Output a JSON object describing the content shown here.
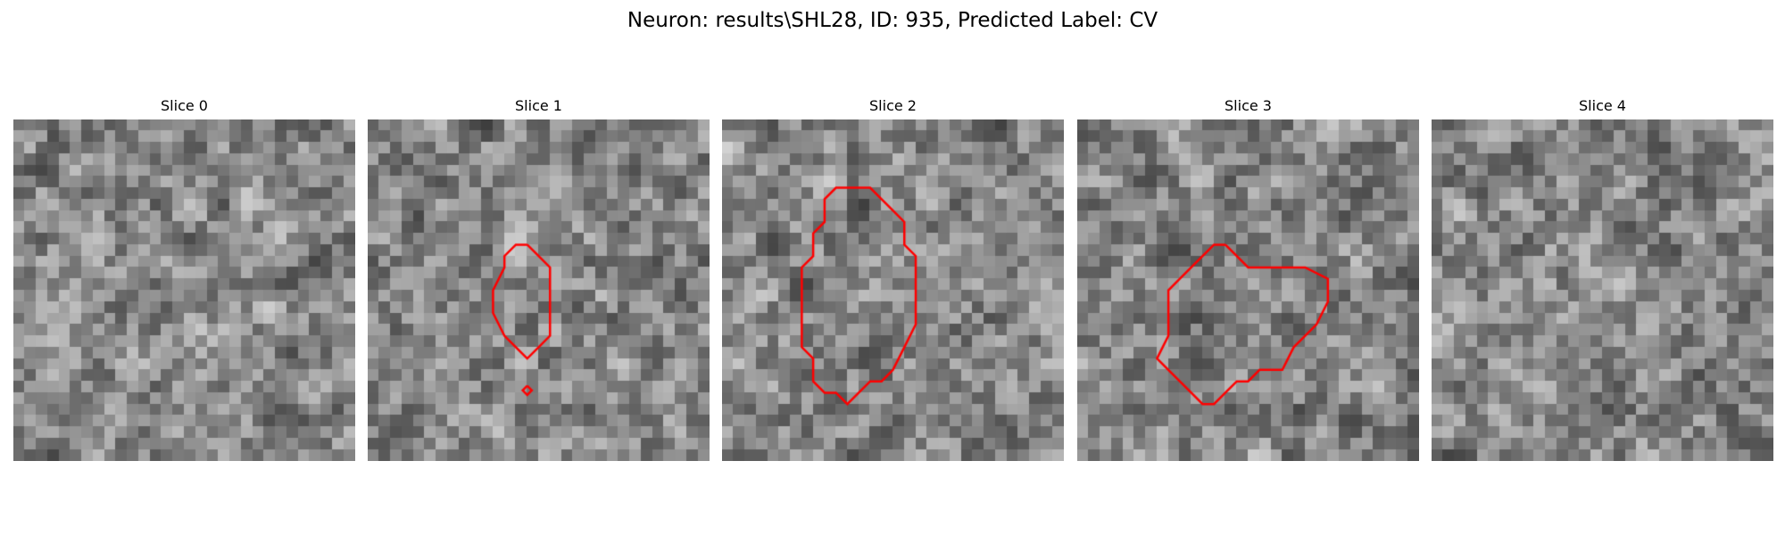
{
  "figure": {
    "title": "Neuron: results\\SHL28, ID: 935, Predicted Label: CV"
  },
  "slices": [
    {
      "label": "Slice 0",
      "seed": 11,
      "contour": []
    },
    {
      "label": "Slice 1",
      "seed": 27,
      "contour": [
        [
          14,
          11
        ],
        [
          15,
          12
        ],
        [
          16,
          13
        ],
        [
          16,
          15
        ],
        [
          16,
          17
        ],
        [
          16,
          19
        ],
        [
          15,
          20
        ],
        [
          14,
          21
        ],
        [
          13,
          20
        ],
        [
          12,
          19
        ],
        [
          11,
          17
        ],
        [
          11,
          15
        ],
        [
          12,
          13
        ],
        [
          12,
          12
        ],
        [
          13,
          11
        ],
        [
          14,
          11
        ]
      ],
      "contour2": [
        [
          14,
          23.4
        ],
        [
          14.4,
          23.8
        ],
        [
          14,
          24.2
        ],
        [
          13.6,
          23.8
        ],
        [
          14,
          23.4
        ]
      ]
    },
    {
      "label": "Slice 2",
      "seed": 43,
      "contour": [
        [
          11,
          6
        ],
        [
          12,
          6
        ],
        [
          13,
          6
        ],
        [
          14,
          7
        ],
        [
          15,
          8
        ],
        [
          16,
          9
        ],
        [
          16,
          11
        ],
        [
          17,
          12
        ],
        [
          17,
          14
        ],
        [
          17,
          16
        ],
        [
          17,
          18
        ],
        [
          16,
          20
        ],
        [
          15,
          22
        ],
        [
          14,
          23
        ],
        [
          13,
          23
        ],
        [
          12,
          24
        ],
        [
          11,
          25
        ],
        [
          10,
          24
        ],
        [
          9,
          24
        ],
        [
          8,
          23
        ],
        [
          8,
          21
        ],
        [
          7,
          20
        ],
        [
          7,
          18
        ],
        [
          7,
          16
        ],
        [
          7,
          14
        ],
        [
          7,
          13
        ],
        [
          8,
          12
        ],
        [
          8,
          10
        ],
        [
          9,
          9
        ],
        [
          9,
          7
        ],
        [
          10,
          6
        ],
        [
          11,
          6
        ]
      ]
    },
    {
      "label": "Slice 3",
      "seed": 59,
      "contour": [
        [
          13,
          11
        ],
        [
          14,
          12
        ],
        [
          15,
          13
        ],
        [
          16,
          13
        ],
        [
          17,
          13
        ],
        [
          18,
          13
        ],
        [
          20,
          13
        ],
        [
          22,
          14
        ],
        [
          22,
          16
        ],
        [
          21,
          18
        ],
        [
          20,
          19
        ],
        [
          19,
          20
        ],
        [
          18,
          22
        ],
        [
          17,
          22
        ],
        [
          16,
          22
        ],
        [
          15,
          23
        ],
        [
          14,
          23
        ],
        [
          13,
          24
        ],
        [
          12,
          25
        ],
        [
          11,
          25
        ],
        [
          10,
          24
        ],
        [
          9,
          23
        ],
        [
          8,
          22
        ],
        [
          7,
          21
        ],
        [
          8,
          19
        ],
        [
          8,
          17
        ],
        [
          8,
          15
        ],
        [
          9,
          14
        ],
        [
          10,
          13
        ],
        [
          11,
          12
        ],
        [
          12,
          11
        ],
        [
          13,
          11
        ]
      ]
    },
    {
      "label": "Slice 4",
      "seed": 75,
      "contour": []
    }
  ],
  "colors": {
    "contour": "#ff0000"
  }
}
